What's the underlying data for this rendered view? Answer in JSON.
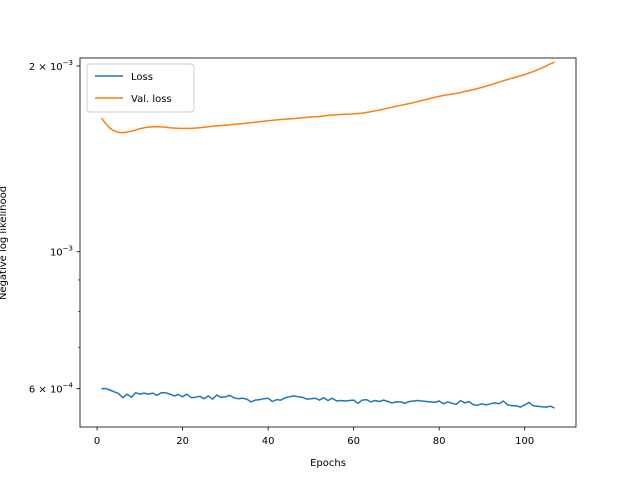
{
  "chart_data": {
    "type": "line",
    "title": "",
    "xlabel": "Epochs",
    "ylabel": "Negative log likelihood",
    "y_scale": "log",
    "xlim": [
      -4,
      112
    ],
    "ylim": [
      0.00052,
      0.00206
    ],
    "x_ticks": [
      0,
      20,
      40,
      60,
      80,
      100
    ],
    "x_tick_labels": [
      "0",
      "20",
      "40",
      "60",
      "80",
      "100"
    ],
    "y_ticks": [
      0.0006,
      0.001,
      0.002
    ],
    "y_tick_labels": [
      {
        "base": "6 × 10",
        "exp": "−4"
      },
      {
        "base": "10",
        "exp": "−3"
      },
      {
        "base": "2 × 10",
        "exp": "−3"
      }
    ],
    "grid": false,
    "legend_position": "upper-left",
    "series": [
      {
        "name": "Loss",
        "color": "#1f77b4",
        "x": [
          1,
          2,
          3,
          4,
          5,
          6,
          7,
          8,
          9,
          10,
          11,
          12,
          13,
          14,
          15,
          16,
          17,
          18,
          19,
          20,
          21,
          22,
          23,
          24,
          25,
          26,
          27,
          28,
          29,
          30,
          31,
          32,
          33,
          34,
          35,
          36,
          37,
          38,
          39,
          40,
          41,
          42,
          43,
          44,
          45,
          46,
          47,
          48,
          49,
          50,
          51,
          52,
          53,
          54,
          55,
          56,
          57,
          58,
          59,
          60,
          61,
          62,
          63,
          64,
          65,
          66,
          67,
          68,
          69,
          70,
          71,
          72,
          73,
          74,
          75,
          76,
          77,
          78,
          79,
          80,
          81,
          82,
          83,
          84,
          85,
          86,
          87,
          88,
          89,
          90,
          91,
          92,
          93,
          94,
          95,
          96,
          97,
          98,
          99,
          100,
          101,
          102,
          103,
          104,
          105,
          106,
          107
        ],
        "y": [
          0.0006,
          0.0006,
          0.000597,
          0.000593,
          0.000589,
          0.00058,
          0.000588,
          0.000581,
          0.000591,
          0.000588,
          0.00059,
          0.000588,
          0.00059,
          0.000585,
          0.000591,
          0.000591,
          0.000588,
          0.000584,
          0.000587,
          0.000582,
          0.000588,
          0.00058,
          0.000581,
          0.000583,
          0.000578,
          0.000584,
          0.000577,
          0.000586,
          0.000581,
          0.000582,
          0.000585,
          0.00058,
          0.000578,
          0.000579,
          0.000577,
          0.000571,
          0.000575,
          0.000576,
          0.000578,
          0.000579,
          0.000572,
          0.000576,
          0.000575,
          0.00058,
          0.000582,
          0.000584,
          0.000582,
          0.000581,
          0.000577,
          0.000578,
          0.000579,
          0.000575,
          0.00058,
          0.000574,
          0.000579,
          0.000573,
          0.000574,
          0.000573,
          0.000574,
          0.000575,
          0.000568,
          0.000575,
          0.000576,
          0.000571,
          0.000574,
          0.000572,
          0.000575,
          0.000572,
          0.000569,
          0.000571,
          0.000571,
          0.000568,
          0.000572,
          0.000573,
          0.000574,
          0.000573,
          0.000572,
          0.000571,
          0.00057,
          0.000573,
          0.000567,
          0.000571,
          0.000568,
          0.000566,
          0.000574,
          0.000569,
          0.000572,
          0.000565,
          0.000564,
          0.000567,
          0.000565,
          0.000567,
          0.000569,
          0.000567,
          0.000573,
          0.000565,
          0.000563,
          0.000563,
          0.00056,
          0.000565,
          0.00057,
          0.000563,
          0.000562,
          0.000561,
          0.00056,
          0.000562,
          0.000558
        ]
      },
      {
        "name": "Val. loss",
        "color": "#ff7f0e",
        "x": [
          1,
          2,
          3,
          4,
          5,
          6,
          7,
          8,
          9,
          10,
          11,
          12,
          13,
          14,
          15,
          16,
          17,
          18,
          19,
          20,
          22,
          24,
          26,
          28,
          30,
          32,
          34,
          36,
          38,
          40,
          42,
          44,
          46,
          48,
          50,
          52,
          54,
          56,
          58,
          60,
          62,
          64,
          66,
          68,
          70,
          72,
          74,
          76,
          78,
          80,
          82,
          84,
          86,
          88,
          90,
          92,
          94,
          96,
          98,
          100,
          102,
          104,
          106,
          107
        ],
        "y": [
          0.001647,
          0.001613,
          0.001586,
          0.001569,
          0.001561,
          0.001559,
          0.001563,
          0.001568,
          0.001575,
          0.001583,
          0.001588,
          0.001592,
          0.001594,
          0.001594,
          0.001593,
          0.001591,
          0.001588,
          0.001586,
          0.001585,
          0.001584,
          0.001584,
          0.001588,
          0.001594,
          0.0016,
          0.001603,
          0.001608,
          0.001613,
          0.001618,
          0.001624,
          0.00163,
          0.001635,
          0.00164,
          0.001643,
          0.001648,
          0.001653,
          0.001656,
          0.001663,
          0.001667,
          0.00167,
          0.001672,
          0.001677,
          0.001686,
          0.001696,
          0.001708,
          0.001721,
          0.001732,
          0.001744,
          0.001758,
          0.001772,
          0.001786,
          0.001796,
          0.001805,
          0.001818,
          0.001831,
          0.001846,
          0.001863,
          0.001882,
          0.001901,
          0.001918,
          0.001937,
          0.001958,
          0.001985,
          0.002015,
          0.002029
        ]
      }
    ]
  }
}
